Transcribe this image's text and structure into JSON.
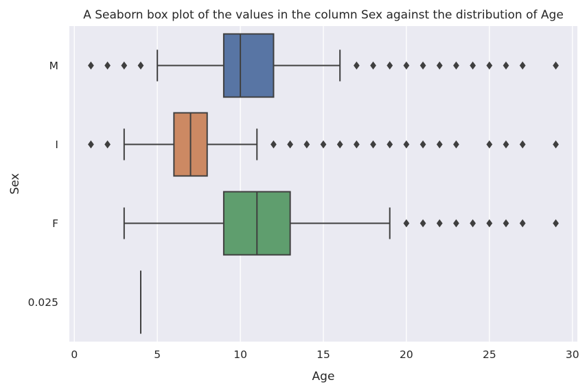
{
  "chart_data": {
    "type": "box",
    "orientation": "horizontal",
    "title": "A Seaborn box plot of the values in the column Sex against the distribution of Age",
    "xlabel": "Age",
    "ylabel": "Sex",
    "xlim": [
      -0.3,
      30.3
    ],
    "x_ticks": [
      0,
      5,
      10,
      15,
      20,
      25,
      30
    ],
    "grid": true,
    "colors": {
      "background": "#eaeaf2",
      "grid": "#ffffff",
      "edge": "#3f3f3f",
      "text": "#262626"
    },
    "categories": [
      "M",
      "I",
      "F",
      "0.025"
    ],
    "series": [
      {
        "name": "M",
        "color": "#5875a4",
        "q1": 9,
        "median": 10,
        "q3": 12,
        "whisker_low": 5,
        "whisker_high": 16,
        "outliers": [
          1,
          2,
          3,
          4,
          17,
          18,
          19,
          20,
          21,
          22,
          23,
          24,
          25,
          26,
          27,
          29
        ]
      },
      {
        "name": "I",
        "color": "#cc8963",
        "q1": 6,
        "median": 7,
        "q3": 8,
        "whisker_low": 3,
        "whisker_high": 11,
        "outliers": [
          1,
          2,
          12,
          13,
          14,
          15,
          16,
          17,
          18,
          19,
          20,
          21,
          22,
          23,
          25,
          26,
          27,
          29
        ]
      },
      {
        "name": "F",
        "color": "#5f9e6e",
        "q1": 9,
        "median": 11,
        "q3": 13,
        "whisker_low": 3,
        "whisker_high": 19,
        "outliers": [
          20,
          21,
          22,
          23,
          24,
          25,
          26,
          27,
          29
        ]
      },
      {
        "name": "0.025",
        "color": "#b55d60",
        "q1": 4,
        "median": 4,
        "q3": 4,
        "whisker_low": 4,
        "whisker_high": 4,
        "outliers": []
      }
    ]
  }
}
